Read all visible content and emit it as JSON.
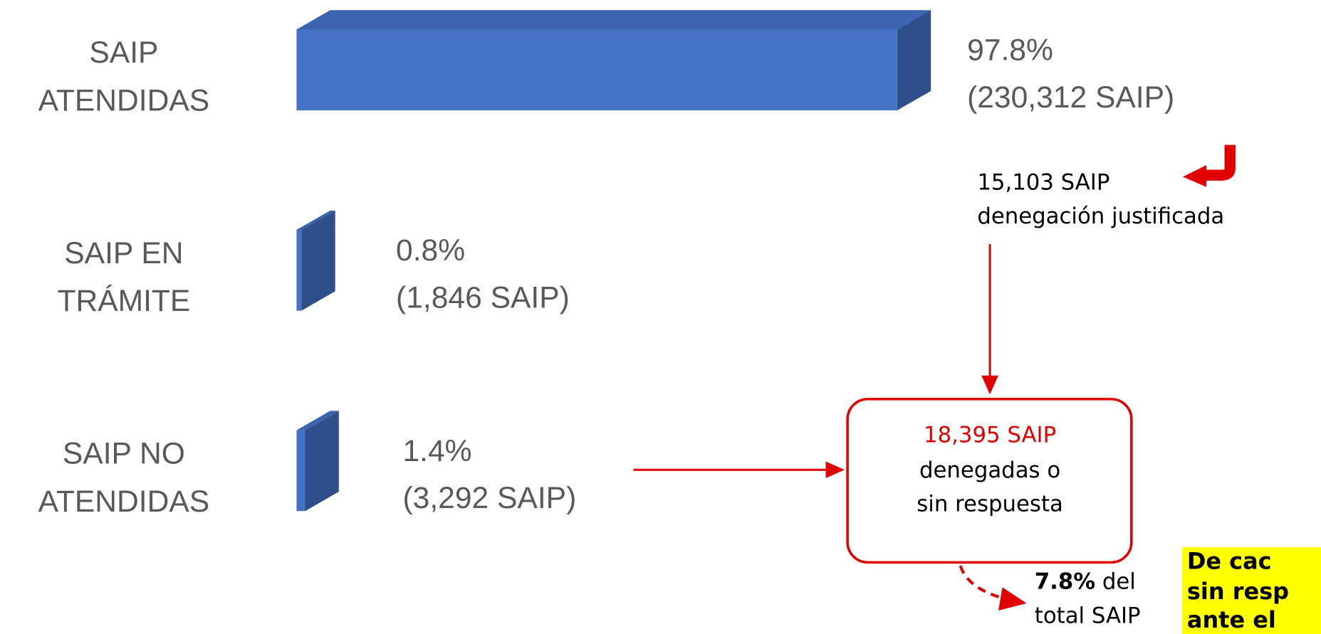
{
  "chart_data": {
    "type": "bar",
    "categories": [
      [
        "SAIP",
        "ATENDIDAS"
      ],
      [
        "SAIP EN",
        "TRÁMITE"
      ],
      [
        "SAIP NO",
        "ATENDIDAS"
      ]
    ],
    "values": [
      97.8,
      0.8,
      1.4
    ],
    "value_labels": [
      "97.8%",
      "0.8%",
      "1.4%"
    ],
    "count_labels": [
      "(230,312 SAIP)",
      "(1,846 SAIP)",
      "(3,292 SAIP)"
    ],
    "color": "#4472c4",
    "xlim": [
      0,
      100
    ],
    "annotations": {
      "justified": [
        "15,103 SAIP",
        "denegación justificada"
      ],
      "denied_count": "18,395 SAIP",
      "denied_text": [
        "denegadas o",
        "sin respuesta"
      ],
      "share_bold": "7.8%",
      "share_text": [
        " del",
        "total SAIP"
      ],
      "note": [
        "De cac",
        "sin resp",
        "ante el"
      ]
    }
  }
}
